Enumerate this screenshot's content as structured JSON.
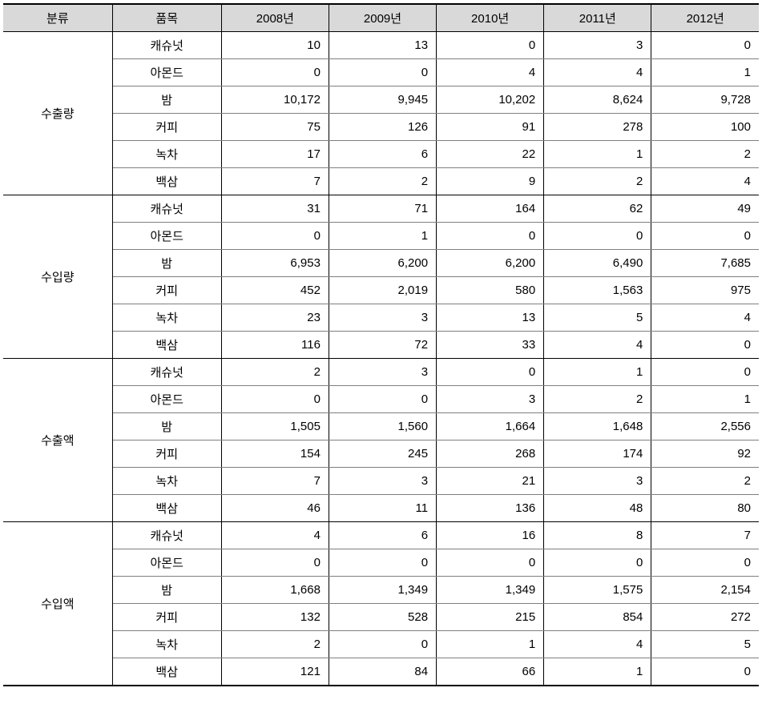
{
  "table": {
    "headers": {
      "category": "분류",
      "item": "품목",
      "years": [
        "2008년",
        "2009년",
        "2010년",
        "2011년",
        "2012년"
      ]
    },
    "categories": [
      {
        "label": "수출량",
        "rows": [
          {
            "item": "캐슈넛",
            "values": [
              "10",
              "13",
              "0",
              "3",
              "0"
            ]
          },
          {
            "item": "아몬드",
            "values": [
              "0",
              "0",
              "4",
              "4",
              "1"
            ]
          },
          {
            "item": "밤",
            "values": [
              "10,172",
              "9,945",
              "10,202",
              "8,624",
              "9,728"
            ]
          },
          {
            "item": "커피",
            "values": [
              "75",
              "126",
              "91",
              "278",
              "100"
            ]
          },
          {
            "item": "녹차",
            "values": [
              "17",
              "6",
              "22",
              "1",
              "2"
            ]
          },
          {
            "item": "백삼",
            "values": [
              "7",
              "2",
              "9",
              "2",
              "4"
            ]
          }
        ]
      },
      {
        "label": "수입량",
        "rows": [
          {
            "item": "캐슈넛",
            "values": [
              "31",
              "71",
              "164",
              "62",
              "49"
            ]
          },
          {
            "item": "아몬드",
            "values": [
              "0",
              "1",
              "0",
              "0",
              "0"
            ]
          },
          {
            "item": "밤",
            "values": [
              "6,953",
              "6,200",
              "6,200",
              "6,490",
              "7,685"
            ]
          },
          {
            "item": "커피",
            "values": [
              "452",
              "2,019",
              "580",
              "1,563",
              "975"
            ]
          },
          {
            "item": "녹차",
            "values": [
              "23",
              "3",
              "13",
              "5",
              "4"
            ]
          },
          {
            "item": "백삼",
            "values": [
              "116",
              "72",
              "33",
              "4",
              "0"
            ]
          }
        ]
      },
      {
        "label": "수출액",
        "rows": [
          {
            "item": "캐슈넛",
            "values": [
              "2",
              "3",
              "0",
              "1",
              "0"
            ]
          },
          {
            "item": "아몬드",
            "values": [
              "0",
              "0",
              "3",
              "2",
              "1"
            ]
          },
          {
            "item": "밤",
            "values": [
              "1,505",
              "1,560",
              "1,664",
              "1,648",
              "2,556"
            ]
          },
          {
            "item": "커피",
            "values": [
              "154",
              "245",
              "268",
              "174",
              "92"
            ]
          },
          {
            "item": "녹차",
            "values": [
              "7",
              "3",
              "21",
              "3",
              "2"
            ]
          },
          {
            "item": "백삼",
            "values": [
              "46",
              "11",
              "136",
              "48",
              "80"
            ]
          }
        ]
      },
      {
        "label": "수입액",
        "rows": [
          {
            "item": "캐슈넛",
            "values": [
              "4",
              "6",
              "16",
              "8",
              "7"
            ]
          },
          {
            "item": "아몬드",
            "values": [
              "0",
              "0",
              "0",
              "0",
              "0"
            ]
          },
          {
            "item": "밤",
            "values": [
              "1,668",
              "1,349",
              "1,349",
              "1,575",
              "2,154"
            ]
          },
          {
            "item": "커피",
            "values": [
              "132",
              "528",
              "215",
              "854",
              "272"
            ]
          },
          {
            "item": "녹차",
            "values": [
              "2",
              "0",
              "1",
              "4",
              "5"
            ]
          },
          {
            "item": "백삼",
            "values": [
              "121",
              "84",
              "66",
              "1",
              "0"
            ]
          }
        ]
      }
    ],
    "styling": {
      "header_bg": "#d9d9d9",
      "outer_border_color": "#000000",
      "inner_border_color": "#7f7f7f",
      "background_color": "#ffffff",
      "font_size": 15,
      "col_widths": {
        "category": 136,
        "item": 136,
        "year": 134
      }
    }
  }
}
